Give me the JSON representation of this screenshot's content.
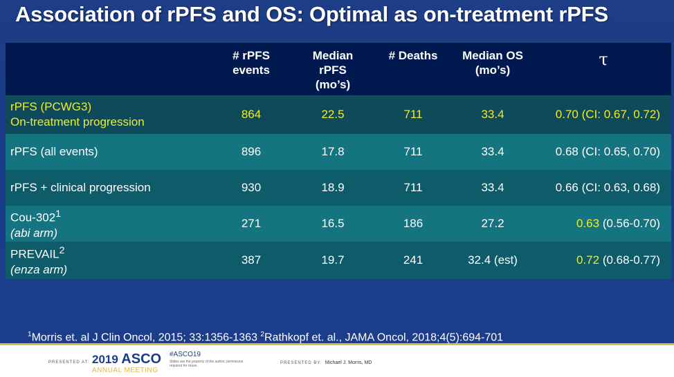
{
  "title": "Association of rPFS and OS: Optimal as on-treatment rPFS",
  "colors": {
    "highlight": "#f0ee2a",
    "header_bg": "#001a50",
    "row_dark": "#0e5b6a",
    "row_light": "#147480"
  },
  "table": {
    "headers": [
      "",
      "# rPFS events",
      "Median rPFS (mo’s)",
      "# Deaths",
      "Median OS (mo’s)",
      "τ"
    ],
    "header_lines": {
      "events": [
        "# rPFS",
        "events"
      ],
      "median_rpfs": [
        "Median",
        "rPFS",
        "(mo’s)"
      ],
      "deaths": [
        "# Deaths"
      ],
      "median_os": [
        "Median OS",
        "(mo’s)"
      ],
      "tau": "τ"
    },
    "rows": [
      {
        "label": "rPFS (PCWG3)",
        "label2": "On-treatment progression",
        "events": "864",
        "median_rpfs": "22.5",
        "deaths": "711",
        "median_os": "33.4",
        "tau_value": "0.70",
        "tau_ci": "(CI: 0.67, 0.72)"
      },
      {
        "label": "rPFS (all events)",
        "label2": "",
        "events": "896",
        "median_rpfs": "17.8",
        "deaths": "711",
        "median_os": "33.4",
        "tau_value": "0.68",
        "tau_ci": "(CI: 0.65, 0.70)"
      },
      {
        "label": "rPFS + clinical progression",
        "label2": "",
        "events": "930",
        "median_rpfs": "18.9",
        "deaths": "711",
        "median_os": "33.4",
        "tau_value": "0.66",
        "tau_ci": "(CI: 0.63, 0.68)"
      },
      {
        "label": "Cou-302",
        "label_sup": "1",
        "label2": "(abi arm)",
        "events": "271",
        "median_rpfs": "16.5",
        "deaths": "186",
        "median_os": "27.2",
        "tau_value": "0.63",
        "tau_ci": "(0.56-0.70)"
      },
      {
        "label": "PREVAIL",
        "label_sup": "2",
        "label2": "(enza arm)",
        "events": "387",
        "median_rpfs": "19.7",
        "deaths": "241",
        "median_os": "32.4 (est)",
        "tau_value": "0.72",
        "tau_ci": "(0.68-0.77)"
      }
    ]
  },
  "footnote": {
    "sup1": "1",
    "ref1": "Morris et. al J Clin Oncol,  2015; 33:1356-1363",
    "sup2": "2",
    "ref2": "Rathkopf et. al., JAMA Oncol, 2018;4(5):694-701"
  },
  "footer": {
    "presented_at": "PRESENTED AT:",
    "year": "2019",
    "org": "ASCO",
    "meeting": "ANNUAL MEETING",
    "hashtag": "#ASCO19",
    "disclaimer": "Slides are the property of the author, permission required for reuse.",
    "presented_by": "PRESENTED BY:",
    "presenter": "Michael J. Morris, MD"
  }
}
